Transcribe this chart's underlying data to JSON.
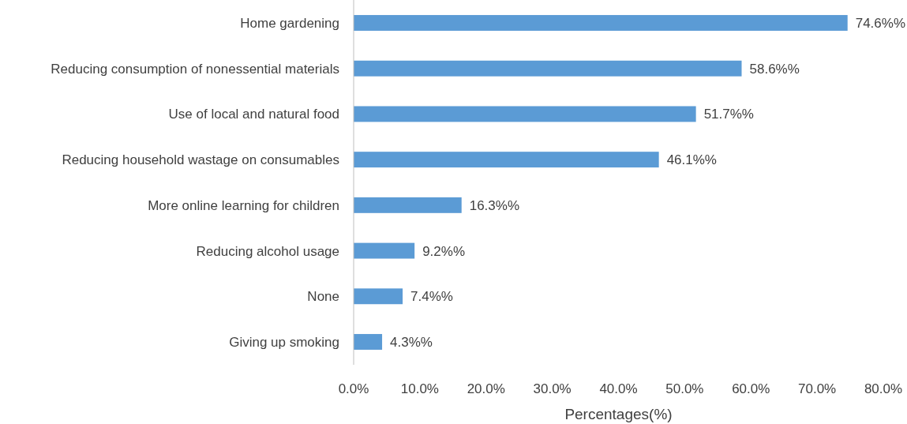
{
  "chart_data": {
    "type": "bar",
    "orientation": "horizontal",
    "xlabel": "Percentages(%)",
    "categories": [
      "Home gardening",
      "Reducing consumption of nonessential materials",
      "Use of local and natural food",
      "Reducing household wastage on consumables",
      "More online learning for children",
      "Reducing alcohol usage",
      "None",
      "Giving up smoking"
    ],
    "values": [
      74.6,
      58.6,
      51.7,
      46.1,
      16.3,
      9.2,
      7.4,
      4.3
    ],
    "value_labels": [
      "74.6%%",
      "58.6%%",
      "51.7%%",
      "46.1%%",
      "16.3%%",
      "9.2%%",
      "7.4%%",
      "4.3%%"
    ],
    "color": "#5b9bd5",
    "xlim": [
      0,
      80
    ],
    "xticks": [
      {
        "value": 0,
        "label": "0.0%"
      },
      {
        "value": 10,
        "label": "10.0%"
      },
      {
        "value": 20,
        "label": "20.0%"
      },
      {
        "value": 30,
        "label": "30.0%"
      },
      {
        "value": 40,
        "label": "40.0%"
      },
      {
        "value": 50,
        "label": "50.0%"
      },
      {
        "value": 60,
        "label": "60.0%"
      },
      {
        "value": 70,
        "label": "70.0%"
      },
      {
        "value": 80,
        "label": "80.0%"
      }
    ],
    "grid": false
  }
}
